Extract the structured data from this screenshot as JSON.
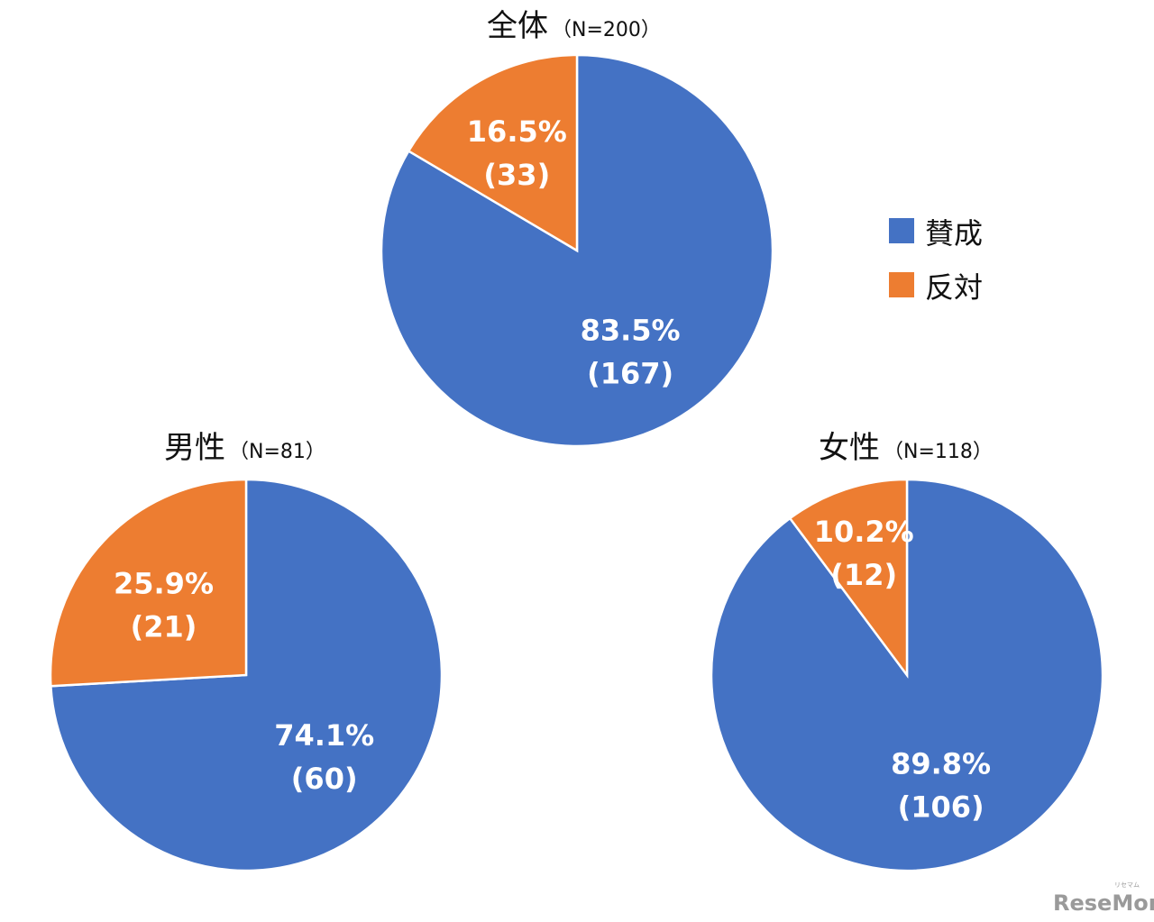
{
  "chart_data": [
    {
      "type": "pie",
      "title": "全体",
      "subtitle": "（N=200）",
      "slices": [
        {
          "name": "賛成",
          "value": 83.5,
          "count": 167,
          "label": "83.5%",
          "count_label": "(167)"
        },
        {
          "name": "反対",
          "value": 16.5,
          "count": 33,
          "label": "16.5%",
          "count_label": "(33)"
        }
      ]
    },
    {
      "type": "pie",
      "title": "男性",
      "subtitle": "（N=81）",
      "slices": [
        {
          "name": "賛成",
          "value": 74.1,
          "count": 60,
          "label": "74.1%",
          "count_label": "(60)"
        },
        {
          "name": "反対",
          "value": 25.9,
          "count": 21,
          "label": "25.9%",
          "count_label": "(21)"
        }
      ]
    },
    {
      "type": "pie",
      "title": "女性",
      "subtitle": "（N=118）",
      "slices": [
        {
          "name": "賛成",
          "value": 89.8,
          "count": 106,
          "label": "89.8%",
          "count_label": "(106)"
        },
        {
          "name": "反対",
          "value": 10.2,
          "count": 12,
          "label": "10.2%",
          "count_label": "(12)"
        }
      ]
    }
  ],
  "legend": [
    {
      "name": "賛成",
      "color": "#4472C4"
    },
    {
      "name": "反対",
      "color": "#ED7D31"
    }
  ],
  "colors": {
    "賛成": "#4472C4",
    "反対": "#ED7D31"
  },
  "watermark": {
    "text": "ReseMom",
    "small_text": "リセマム"
  }
}
